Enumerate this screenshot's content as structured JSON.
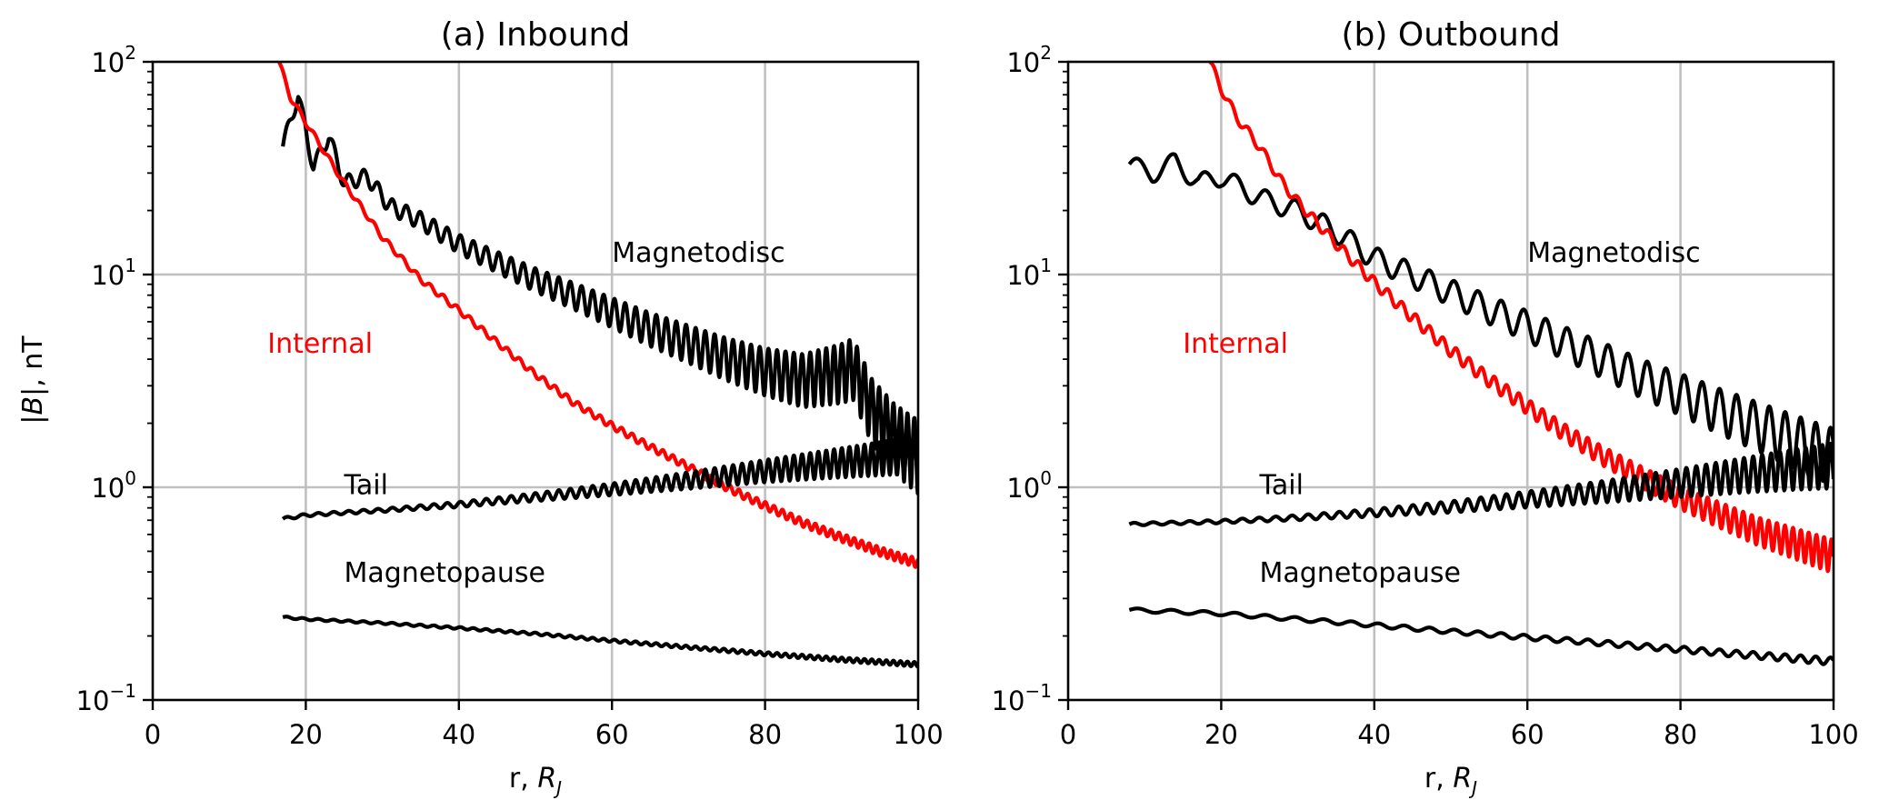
{
  "figure": {
    "ylabel_prefix": "|",
    "ylabel_var": "B",
    "ylabel_suffix": "|, nT",
    "xlabel_prefix": "r, ",
    "xlabel_var": "R",
    "xlabel_sub": "J"
  },
  "chart_data": [
    {
      "type": "line",
      "title": "(a) Inbound",
      "xlabel": "r, R_J",
      "ylabel": "|B|, nT",
      "xlim": [
        0,
        100
      ],
      "ylim": [
        0.1,
        100
      ],
      "yscale": "log",
      "grid": true,
      "x_ticks": [
        0,
        20,
        40,
        60,
        80,
        100
      ],
      "y_ticks": [
        {
          "base": "10",
          "exp": "−1",
          "value": 0.1
        },
        {
          "base": "10",
          "exp": "0",
          "value": 1
        },
        {
          "base": "10",
          "exp": "1",
          "value": 10
        },
        {
          "base": "10",
          "exp": "2",
          "value": 100
        }
      ],
      "annotations": [
        {
          "text": "Magnetodisc",
          "x": 60,
          "y": 11.5,
          "color": "#000000"
        },
        {
          "text": "Internal",
          "x": 15,
          "y": 4.3,
          "color": "#ff0000"
        },
        {
          "text": "Tail",
          "x": 25,
          "y": 0.93,
          "color": "#000000"
        },
        {
          "text": "Magnetopause",
          "x": 25,
          "y": 0.36,
          "color": "#000000"
        }
      ],
      "series": [
        {
          "name": "Magnetodisc",
          "color": "#000000",
          "x": [
            17,
            19,
            21,
            23,
            25,
            28,
            31,
            35,
            40,
            45,
            50,
            55,
            60,
            65,
            70,
            75,
            80,
            85,
            90,
            91.5,
            94,
            97,
            100
          ],
          "y": [
            40,
            70,
            32,
            45,
            27,
            29,
            21,
            18,
            14,
            11.5,
            9.5,
            8.0,
            6.7,
            5.6,
            4.8,
            4.1,
            3.6,
            3.3,
            3.6,
            3.8,
            2.4,
            1.8,
            1.5
          ],
          "oscillation": {
            "period": 2.1,
            "relative_amplitude_start": 0.08,
            "relative_amplitude_end": 0.38
          }
        },
        {
          "name": "Internal",
          "color": "#ff0000",
          "x": [
            16.5,
            18,
            20,
            22,
            25,
            28,
            30,
            35,
            40,
            45,
            50,
            55,
            60,
            65,
            70,
            75,
            80,
            85,
            90,
            95,
            100
          ],
          "y": [
            100,
            68,
            52,
            40,
            27,
            19,
            15,
            9.5,
            6.8,
            4.8,
            3.4,
            2.5,
            1.95,
            1.55,
            1.25,
            1.0,
            0.82,
            0.68,
            0.58,
            0.5,
            0.44
          ],
          "oscillation": {
            "period": 2.1,
            "relative_amplitude_start": 0.03,
            "relative_amplitude_end": 0.05
          }
        },
        {
          "name": "Tail",
          "color": "#000000",
          "x": [
            17,
            20,
            30,
            40,
            50,
            60,
            70,
            80,
            90,
            100
          ],
          "y": [
            0.71,
            0.74,
            0.78,
            0.83,
            0.9,
            0.98,
            1.08,
            1.2,
            1.32,
            1.45
          ],
          "oscillation": {
            "period": 2.1,
            "relative_amplitude_start": 0.015,
            "relative_amplitude_end": 0.2
          }
        },
        {
          "name": "Magnetopause",
          "color": "#000000",
          "x": [
            17,
            20,
            30,
            40,
            50,
            60,
            70,
            80,
            90,
            100
          ],
          "y": [
            0.245,
            0.24,
            0.23,
            0.218,
            0.205,
            0.19,
            0.177,
            0.165,
            0.155,
            0.147
          ],
          "oscillation": {
            "period": 2.1,
            "relative_amplitude_start": 0.01,
            "relative_amplitude_end": 0.025
          }
        }
      ]
    },
    {
      "type": "line",
      "title": "(b) Outbound",
      "xlabel": "r, R_J",
      "ylabel": "",
      "xlim": [
        0,
        100
      ],
      "ylim": [
        0.1,
        100
      ],
      "yscale": "log",
      "grid": true,
      "x_ticks": [
        0,
        20,
        40,
        60,
        80,
        100
      ],
      "y_ticks": [
        {
          "base": "10",
          "exp": "−1",
          "value": 0.1
        },
        {
          "base": "10",
          "exp": "0",
          "value": 1
        },
        {
          "base": "10",
          "exp": "1",
          "value": 10
        },
        {
          "base": "10",
          "exp": "2",
          "value": 100
        }
      ],
      "annotations": [
        {
          "text": "Magnetodisc",
          "x": 60,
          "y": 11.5,
          "color": "#000000"
        },
        {
          "text": "Internal",
          "x": 15,
          "y": 4.3,
          "color": "#ff0000"
        },
        {
          "text": "Tail",
          "x": 25,
          "y": 0.93,
          "color": "#000000"
        },
        {
          "text": "Magnetopause",
          "x": 25,
          "y": 0.36,
          "color": "#000000"
        }
      ],
      "series": [
        {
          "name": "Magnetodisc",
          "color": "#000000",
          "x": [
            8,
            11,
            14,
            17,
            20,
            25,
            30,
            35,
            40,
            45,
            50,
            55,
            60,
            65,
            70,
            75,
            80,
            85,
            90,
            95,
            100
          ],
          "y": [
            33,
            30,
            34,
            27,
            29,
            23,
            20,
            16,
            12,
            10,
            8.3,
            6.9,
            5.8,
            4.8,
            4.0,
            3.3,
            2.8,
            2.35,
            2.0,
            1.7,
            1.45
          ],
          "oscillation": {
            "period": 4.5,
            "relative_amplitude_start": 0.1,
            "relative_amplitude_end": 0.3
          }
        },
        {
          "name": "Internal",
          "color": "#ff0000",
          "x": [
            18.5,
            20,
            22,
            25,
            28,
            30,
            35,
            40,
            45,
            50,
            55,
            60,
            65,
            70,
            75,
            80,
            85,
            90,
            95,
            100
          ],
          "y": [
            100,
            75,
            55,
            40,
            27,
            22,
            14,
            9.2,
            6.3,
            4.4,
            3.2,
            2.4,
            1.8,
            1.4,
            1.12,
            0.9,
            0.75,
            0.63,
            0.55,
            0.48
          ],
          "oscillation": {
            "period": 2.3,
            "relative_amplitude_start": 0.05,
            "relative_amplitude_end": 0.18
          }
        },
        {
          "name": "Tail",
          "color": "#000000",
          "x": [
            8,
            20,
            30,
            40,
            50,
            60,
            70,
            80,
            90,
            100
          ],
          "y": [
            0.67,
            0.69,
            0.72,
            0.76,
            0.81,
            0.88,
            0.96,
            1.06,
            1.18,
            1.3
          ],
          "oscillation": {
            "period": 2.5,
            "relative_amplitude_start": 0.015,
            "relative_amplitude_end": 0.24
          }
        },
        {
          "name": "Magnetopause",
          "color": "#000000",
          "x": [
            8,
            20,
            30,
            40,
            50,
            60,
            70,
            80,
            90,
            100
          ],
          "y": [
            0.265,
            0.255,
            0.24,
            0.225,
            0.21,
            0.197,
            0.185,
            0.173,
            0.162,
            0.152
          ],
          "oscillation": {
            "period": 4.5,
            "relative_amplitude_start": 0.02,
            "relative_amplitude_end": 0.04
          }
        }
      ]
    }
  ]
}
